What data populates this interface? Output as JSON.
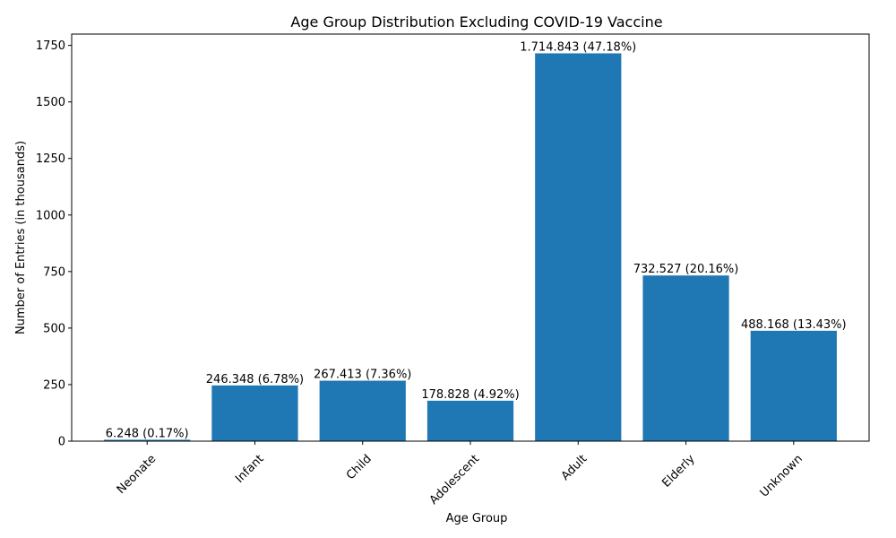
{
  "chart_data": {
    "type": "bar",
    "title": "Age Group Distribution Excluding COVID-19 Vaccine",
    "xlabel": "Age Group",
    "ylabel": "Number of Entries (in thousands)",
    "categories": [
      "Neonate",
      "Infant",
      "Child",
      "Adolescent",
      "Adult",
      "Elderly",
      "Unknown"
    ],
    "values": [
      6.248,
      246.348,
      267.413,
      178.828,
      1714.843,
      732.527,
      488.168
    ],
    "data_labels": [
      "6.248 (0.17%)",
      "246.348 (6.78%)",
      "267.413 (7.36%)",
      "178.828 (4.92%)",
      "1.714.843 (47.18%)",
      "732.527 (20.16%)",
      "488.168 (13.43%)"
    ],
    "ylim": [
      0,
      1800
    ],
    "yticks": [
      0,
      250,
      500,
      750,
      1000,
      1250,
      1500,
      1750
    ],
    "ytick_labels": [
      "0",
      "250",
      "500",
      "750",
      "1000",
      "1250",
      "1500",
      "1750"
    ],
    "bar_color": "#1f77b4",
    "grid": false,
    "legend": "none",
    "xtick_rotation": "45°"
  }
}
